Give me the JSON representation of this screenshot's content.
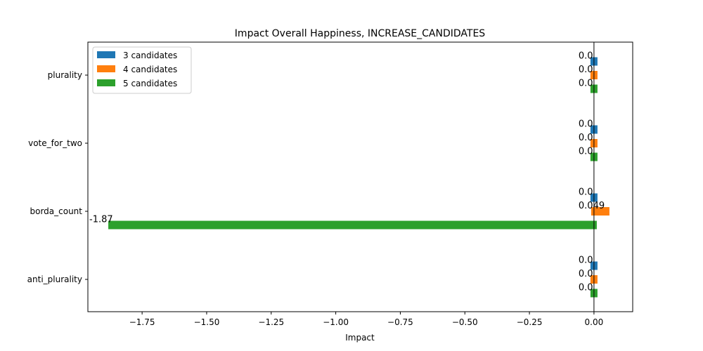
{
  "chart_data": {
    "type": "bar",
    "orientation": "horizontal",
    "title": "Impact Overall Happiness, INCREASE_CANDIDATES",
    "xlabel": "Impact",
    "ylabel": "",
    "xlim": [
      -1.96,
      0.15
    ],
    "categories": [
      "plurality",
      "vote_for_two",
      "borda_count",
      "anti_plurality"
    ],
    "x_ticks": [
      -1.75,
      -1.5,
      -1.25,
      -1.0,
      -0.75,
      -0.5,
      -0.25,
      0.0
    ],
    "x_tick_labels": [
      "−1.75",
      "−1.50",
      "−1.25",
      "−1.00",
      "−0.75",
      "−0.50",
      "−0.25",
      "0.00"
    ],
    "series": [
      {
        "name": "3 candidates",
        "color": "#1f77b4",
        "values": [
          0.0,
          0.0,
          0.0,
          0.0
        ],
        "labels": [
          "0.0",
          "0.0",
          "0.0",
          "0.0"
        ]
      },
      {
        "name": "4 candidates",
        "color": "#ff7f0e",
        "values": [
          0.0,
          0.0,
          0.049,
          0.0
        ],
        "labels": [
          "0.0",
          "0.0",
          "0.049",
          "0.0"
        ]
      },
      {
        "name": "5 candidates",
        "color": "#2ca02c",
        "values": [
          0.0,
          0.0,
          -1.87,
          0.0
        ],
        "labels": [
          "0.0",
          "0.0",
          "-1.87",
          "0.0"
        ]
      }
    ],
    "zero_line": true,
    "legend": "top-left",
    "grid": false
  }
}
